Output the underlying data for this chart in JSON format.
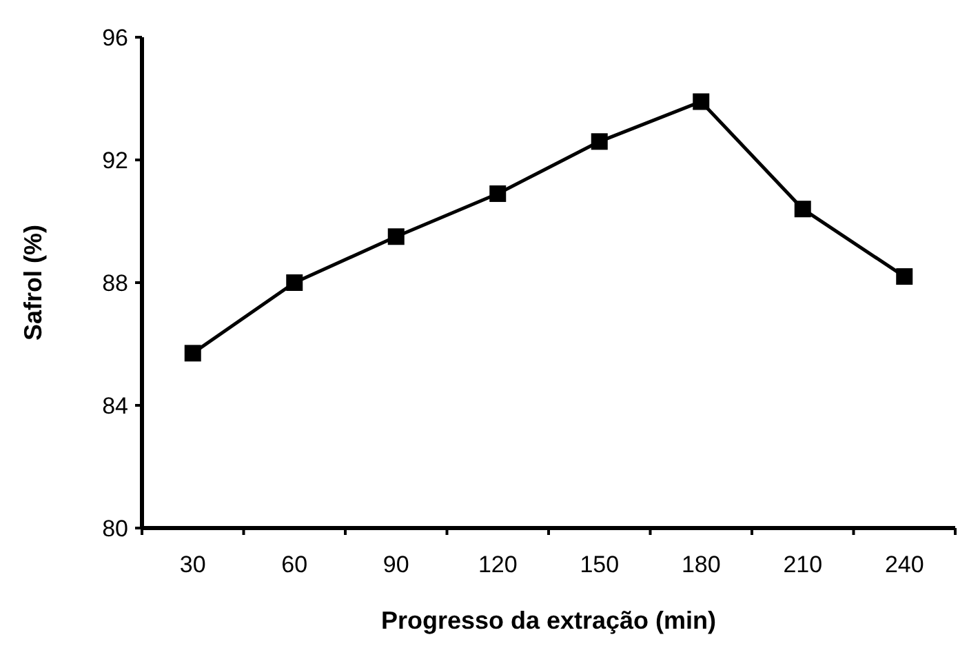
{
  "chart_data": {
    "type": "line",
    "xlabel": "Progresso da extração (min)",
    "ylabel": "Safrol (%)",
    "categories": [
      "30",
      "60",
      "90",
      "120",
      "150",
      "180",
      "210",
      "240"
    ],
    "series": [
      {
        "color": "#000000",
        "values": [
          85.7,
          88.0,
          89.5,
          90.9,
          92.6,
          93.9,
          90.4,
          88.2
        ]
      }
    ],
    "ylim": [
      80,
      96
    ],
    "yticks": [
      80,
      84,
      88,
      92,
      96
    ],
    "marker": "square"
  }
}
